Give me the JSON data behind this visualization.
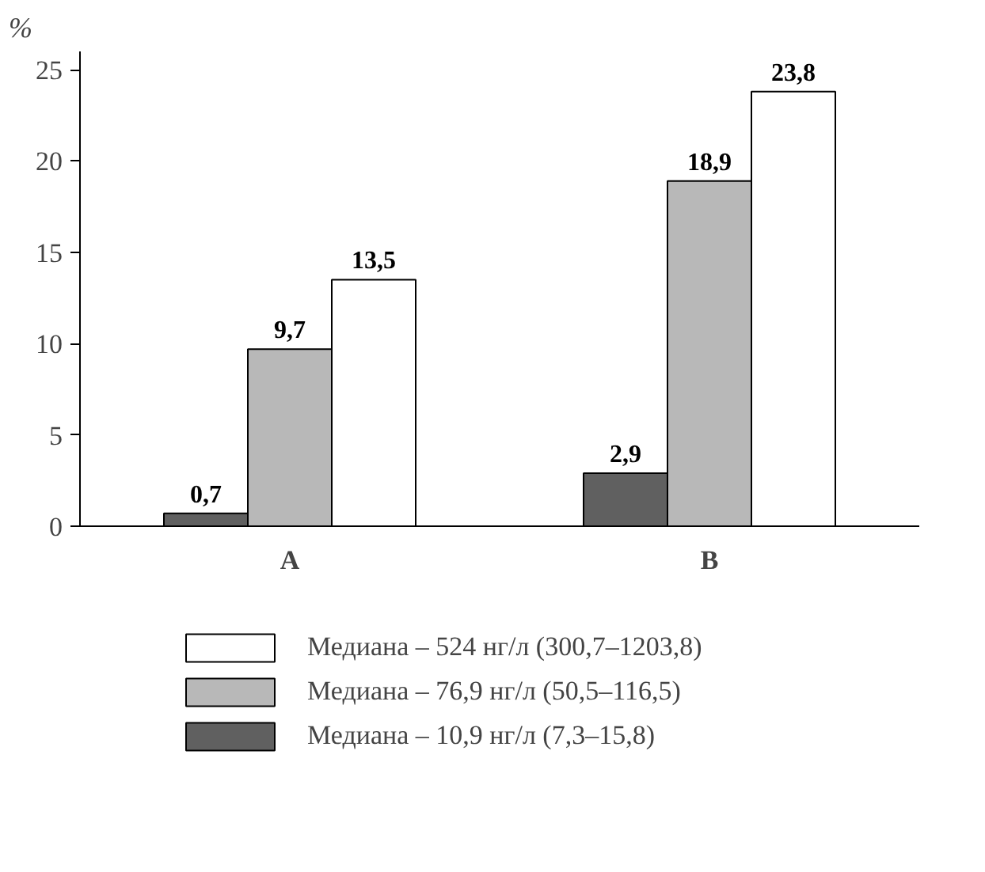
{
  "chart_data": {
    "type": "bar",
    "ylabel": "%",
    "categories": [
      "A",
      "B"
    ],
    "series": [
      {
        "name": "Медиана – 10,9 нг/л (7,3–15,8)",
        "color": "#606060",
        "values": [
          0.7,
          2.9
        ],
        "value_labels": [
          "0,7",
          "2,9"
        ]
      },
      {
        "name": "Медиана – 76,9 нг/л (50,5–116,5)",
        "color": "#b8b8b8",
        "values": [
          9.7,
          18.9
        ],
        "value_labels": [
          "9,7",
          "18,9"
        ]
      },
      {
        "name": "Медиана – 524 нг/л (300,7–1203,8)",
        "color": "#ffffff",
        "values": [
          13.5,
          23.8
        ],
        "value_labels": [
          "13,5",
          "23,8"
        ]
      }
    ],
    "ylim": [
      0,
      26
    ],
    "yticks": [
      0,
      5,
      10,
      15,
      20,
      25
    ],
    "grid": false,
    "legend": "bottom"
  }
}
